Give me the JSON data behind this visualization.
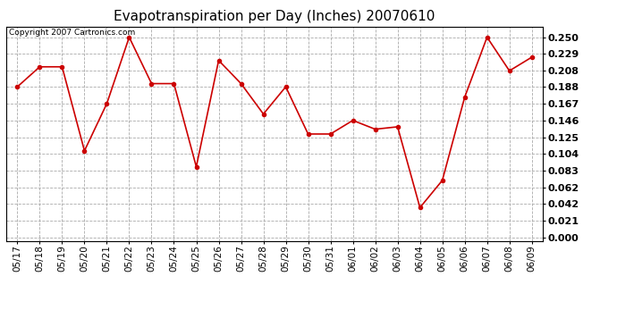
{
  "title": "Evapotranspiration per Day (Inches) 20070610",
  "copyright_text": "Copyright 2007 Cartronics.com",
  "x_labels": [
    "05/17",
    "05/18",
    "05/19",
    "05/20",
    "05/21",
    "05/22",
    "05/23",
    "05/24",
    "05/25",
    "05/26",
    "05/27",
    "05/28",
    "05/29",
    "05/30",
    "05/31",
    "06/01",
    "06/02",
    "06/03",
    "06/04",
    "06/05",
    "06/06",
    "06/07",
    "06/08",
    "06/09"
  ],
  "y_values": [
    0.188,
    0.213,
    0.213,
    0.108,
    0.167,
    0.25,
    0.192,
    0.192,
    0.088,
    0.221,
    0.192,
    0.154,
    0.188,
    0.129,
    0.129,
    0.146,
    0.135,
    0.138,
    0.037,
    0.071,
    0.175,
    0.25,
    0.208,
    0.225
  ],
  "y_ticks": [
    0.0,
    0.021,
    0.042,
    0.062,
    0.083,
    0.104,
    0.125,
    0.146,
    0.167,
    0.188,
    0.208,
    0.229,
    0.25
  ],
  "line_color": "#cc0000",
  "marker": "o",
  "bg_color": "#ffffff",
  "grid_color": "#aaaaaa",
  "title_fontsize": 11,
  "copyright_fontsize": 6.5,
  "tick_fontsize": 7.5,
  "y_tick_fontsize": 8,
  "marker_size": 3
}
